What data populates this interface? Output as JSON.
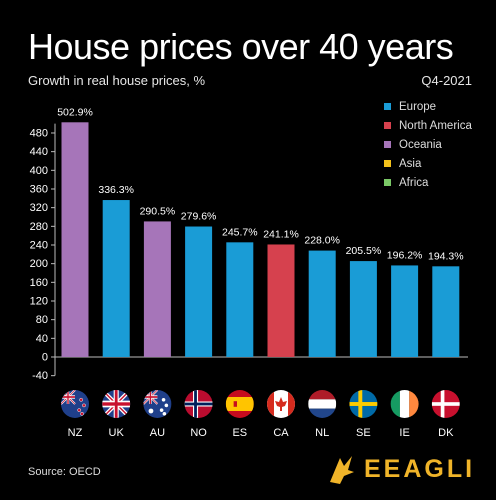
{
  "title": "House prices over 40 years",
  "subtitle": "Growth in real house prices, %",
  "period": "Q4-2021",
  "source": "Source: OECD",
  "brand": "EEAGLI",
  "legend": [
    {
      "label": "Europe",
      "color": "#1a9cd6"
    },
    {
      "label": "North America",
      "color": "#d6414e"
    },
    {
      "label": "Oceania",
      "color": "#a675b9"
    },
    {
      "label": "Asia",
      "color": "#f4c21b"
    },
    {
      "label": "Africa",
      "color": "#7ac866"
    }
  ],
  "chart_data": {
    "type": "bar",
    "categories": [
      "NZ",
      "UK",
      "AU",
      "NO",
      "ES",
      "CA",
      "NL",
      "SE",
      "IE",
      "DK"
    ],
    "values": [
      502.9,
      336.3,
      290.5,
      279.6,
      245.7,
      241.1,
      228.0,
      205.5,
      196.2,
      194.3
    ],
    "data_labels": [
      "502.9%",
      "336.3%",
      "290.5%",
      "279.6%",
      "245.7%",
      "241.1%",
      "228.0%",
      "205.5%",
      "196.2%",
      "194.3%"
    ],
    "regions": [
      "Oceania",
      "Europe",
      "Oceania",
      "Europe",
      "Europe",
      "North America",
      "Europe",
      "Europe",
      "Europe",
      "Europe"
    ],
    "colors": [
      "#a675b9",
      "#1a9cd6",
      "#a675b9",
      "#1a9cd6",
      "#1a9cd6",
      "#d6414e",
      "#1a9cd6",
      "#1a9cd6",
      "#1a9cd6",
      "#1a9cd6"
    ],
    "yticks": [
      -40,
      0,
      40,
      80,
      120,
      160,
      200,
      240,
      280,
      320,
      360,
      400,
      440,
      480
    ],
    "ylim": [
      -40,
      500
    ],
    "xlabel": "",
    "ylabel": "",
    "grid": false,
    "legend_position": "top-right"
  }
}
